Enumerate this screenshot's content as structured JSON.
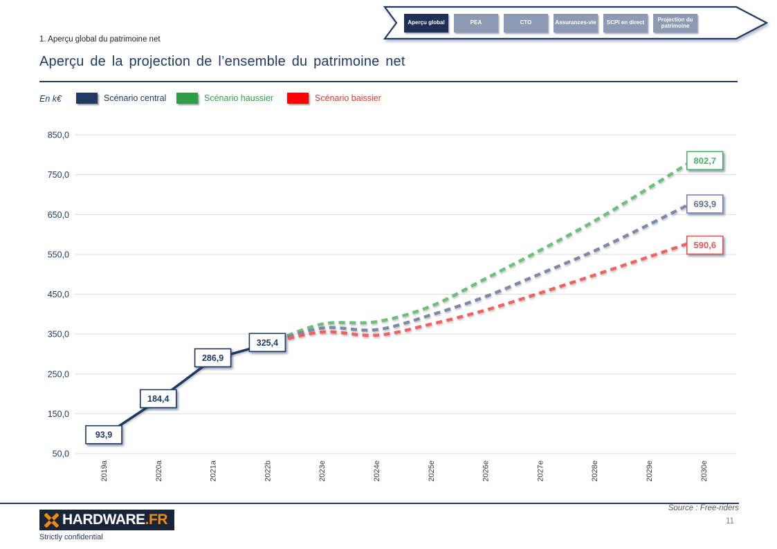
{
  "nav": {
    "tabs": [
      {
        "label": "Aperçu global",
        "active": true
      },
      {
        "label": "PEA",
        "active": false
      },
      {
        "label": "CTO",
        "active": false
      },
      {
        "label": "Assurances-vie",
        "active": false
      },
      {
        "label": "SCPI en direct",
        "active": false
      },
      {
        "label": "Projection du patrimoine",
        "active": false
      }
    ]
  },
  "breadcrumb": "1. Aperçu global du patrimoine net",
  "title": "Aperçu de la projection de l’ensemble du patrimoine net",
  "legend": {
    "unit": "En k€",
    "items": [
      {
        "label": "Scénario central",
        "swatch": "#1F3864",
        "text_color": "#1F3864"
      },
      {
        "label": "Scénario haussier",
        "swatch": "#2E9E44",
        "text_color": "#2E9E44"
      },
      {
        "label": "Scénario baissier",
        "swatch": "#FF0000",
        "text_color": "#E4342C"
      }
    ]
  },
  "chart_data": {
    "type": "line",
    "title": "Aperçu de la projection de l’ensemble du patrimoine net",
    "ylabel": "En k€",
    "xlabel": "",
    "categories": [
      "2019a",
      "2020a",
      "2021a",
      "2022b",
      "2023e",
      "2024e",
      "2025e",
      "2026e",
      "2027e",
      "2028e",
      "2029e",
      "2030e"
    ],
    "ylim": [
      50,
      850
    ],
    "ytick_step": 100,
    "ytick_labels": [
      "50,0",
      "150,0",
      "250,0",
      "350,0",
      "450,0",
      "550,0",
      "650,0",
      "750,0",
      "850,0"
    ],
    "grid": true,
    "legend_position": "top",
    "series": [
      {
        "name": "Scénario central (historique)",
        "type": "solid",
        "color": "#1F3864",
        "start_index": 0,
        "values": [
          93.9,
          184.4,
          286.9,
          325.4
        ],
        "point_labels": [
          "93,9",
          "184,4",
          "286,9",
          "325,4"
        ],
        "label_color": "#1F3864"
      },
      {
        "name": "Scénario haussier",
        "type": "dashed",
        "color": "#6CBE7A",
        "start_index": 3,
        "values": [
          325.4,
          375,
          381,
          420,
          489,
          560,
          634,
          717,
          802.7
        ],
        "end_label": "802,7",
        "label_color": "#4CB06C",
        "end_text_color": "#4CB06C"
      },
      {
        "name": "Scénario central (projection)",
        "type": "dashed",
        "color": "#7B89A4",
        "start_index": 3,
        "values": [
          325.4,
          365,
          361,
          398,
          444,
          501,
          559,
          625,
          693.9
        ],
        "end_label": "693,9",
        "label_color": "#7D7FC1",
        "end_text_color": "#5F6E85"
      },
      {
        "name": "Scénario baissier",
        "type": "dashed",
        "color": "#F2605F",
        "start_index": 3,
        "values": [
          325.4,
          355,
          347,
          375,
          410,
          453,
          498,
          544,
          590.6
        ],
        "end_label": "590,6",
        "label_color": "#E05555",
        "end_text_color": "#E05555"
      }
    ]
  },
  "footer": {
    "source": "Source : Free-riders",
    "page_number": "11",
    "confidentiality": "Strictly confidential",
    "logo": {
      "name": "HARDWARE",
      "suffix": ".FR"
    }
  },
  "colors": {
    "accent_navy": "#1F3864",
    "tab_active": "#1F3057",
    "tab_inactive": "#8C9BB3",
    "gridline": "#DCDCDC",
    "logo_orange": "#F08A12"
  }
}
